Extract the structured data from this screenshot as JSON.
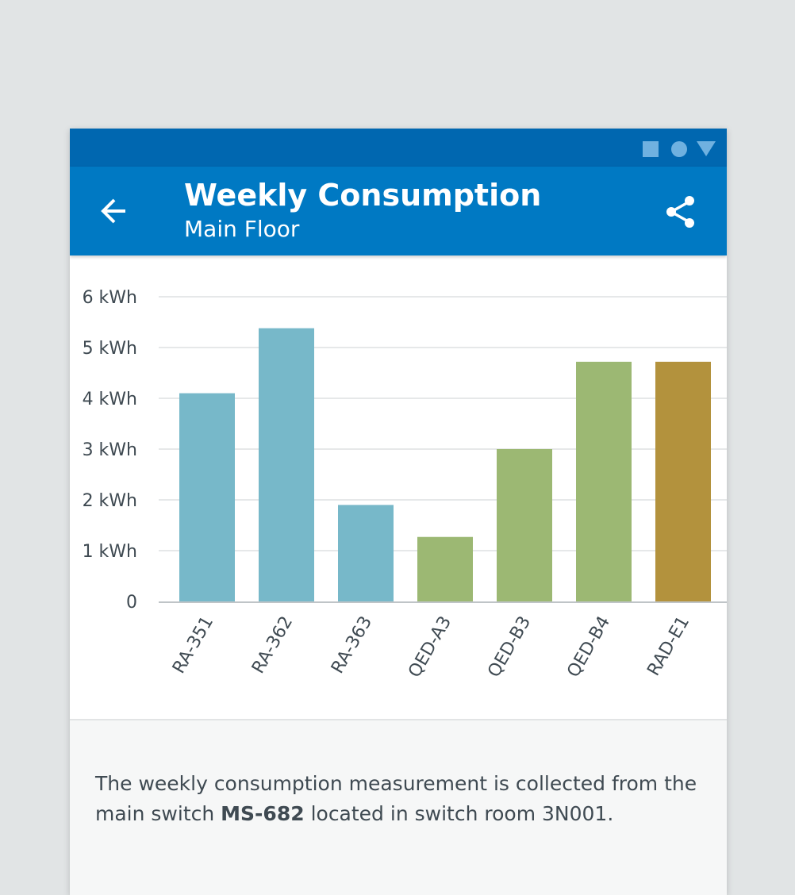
{
  "header": {
    "title": "Weekly Consumption",
    "subtitle": "Main Floor"
  },
  "icons": {
    "back": "arrow-back-icon",
    "share": "share-icon",
    "status": [
      "square-icon",
      "circle-icon",
      "triangle-icon"
    ]
  },
  "colors": {
    "status_bar": "#0067b0",
    "app_bar": "#0079c3",
    "status_icons": "#6fb1e0",
    "bar_blue": "#77b8c9",
    "bar_green": "#9cb873",
    "bar_gold": "#b3923d"
  },
  "chart_data": {
    "type": "bar",
    "categories": [
      "RA-351",
      "RA-362",
      "RA-363",
      "QED-A3",
      "QED-B3",
      "QED-B4",
      "RAD-E1"
    ],
    "values": [
      4.1,
      5.38,
      1.9,
      1.27,
      3.0,
      4.72,
      4.72
    ],
    "bar_colors": [
      "#77b8c9",
      "#77b8c9",
      "#77b8c9",
      "#9cb873",
      "#9cb873",
      "#9cb873",
      "#b3923d"
    ],
    "yticks": [
      0,
      1,
      2,
      3,
      4,
      5,
      6
    ],
    "ytick_labels": [
      "0",
      "1 kWh",
      "2 kWh",
      "3 kWh",
      "4 kWh",
      "5 kWh",
      "6 kWh"
    ],
    "ylim": [
      0,
      6
    ],
    "grid": true,
    "xlabel": "",
    "ylabel": ""
  },
  "description": {
    "before": "The weekly consumption measurement is collected from the main switch ",
    "switch_id": "MS-682",
    "after": " located in switch room 3N001."
  }
}
